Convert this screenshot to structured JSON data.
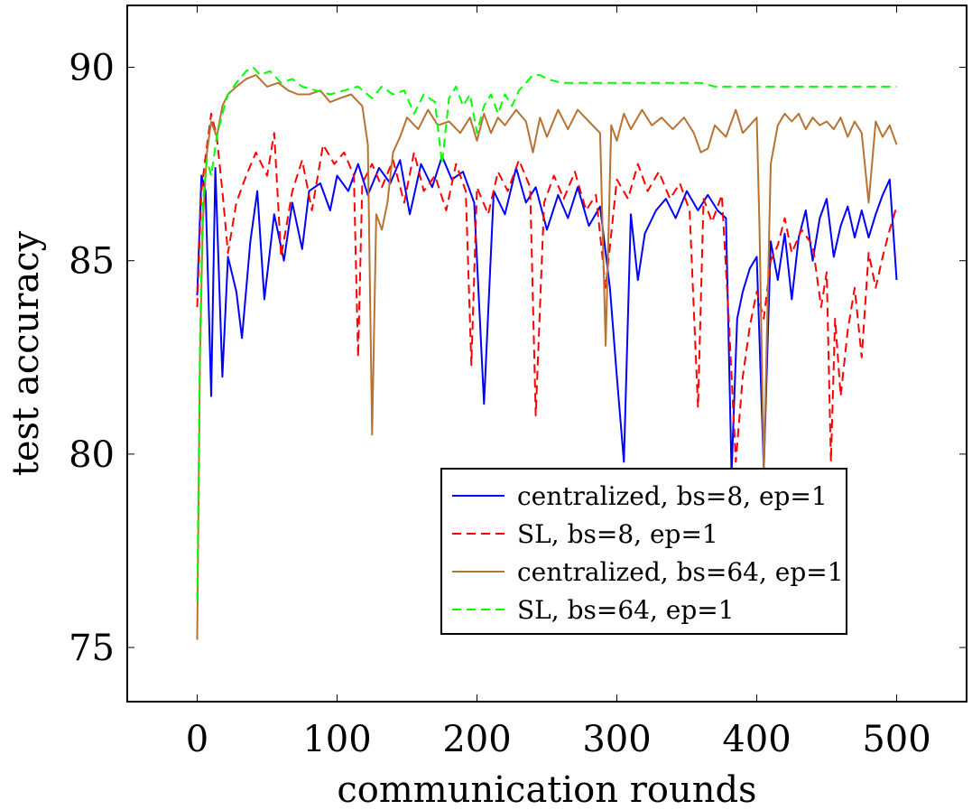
{
  "chart_data": {
    "type": "line",
    "title": "",
    "xlabel": "communication rounds",
    "ylabel": "test accuracy",
    "xlim": [
      -50,
      550
    ],
    "ylim": [
      73.6,
      91.6
    ],
    "xticks": [
      0,
      100,
      200,
      300,
      400,
      500
    ],
    "yticks": [
      75,
      80,
      85,
      90
    ],
    "grid": false,
    "legend_position": "lower-right",
    "series": [
      {
        "name": "centralized, bs=8,  ep=1",
        "color": "#0000ff",
        "dash": "solid",
        "x": [
          0,
          3,
          6,
          10,
          13,
          18,
          22,
          28,
          32,
          38,
          43,
          48,
          55,
          62,
          68,
          75,
          80,
          88,
          95,
          100,
          108,
          115,
          122,
          130,
          138,
          145,
          152,
          160,
          168,
          175,
          182,
          190,
          198,
          205,
          212,
          220,
          228,
          235,
          242,
          250,
          258,
          265,
          272,
          280,
          288,
          295,
          300,
          305,
          310,
          315,
          320,
          328,
          335,
          342,
          350,
          358,
          365,
          372,
          378,
          382,
          386,
          390,
          395,
          400,
          405,
          410,
          415,
          420,
          425,
          430,
          435,
          440,
          445,
          450,
          455,
          460,
          465,
          470,
          475,
          480,
          485,
          490,
          495,
          500
        ],
        "values": [
          84.1,
          87.2,
          86.8,
          81.5,
          87.4,
          82.0,
          85.1,
          84.2,
          83.0,
          85.5,
          86.8,
          84.0,
          86.2,
          85.0,
          86.5,
          85.3,
          86.8,
          87.0,
          86.3,
          87.2,
          86.8,
          87.5,
          86.7,
          87.4,
          87.0,
          87.6,
          86.2,
          87.5,
          86.9,
          87.7,
          87.1,
          87.3,
          86.5,
          81.3,
          86.8,
          86.2,
          87.4,
          86.5,
          86.9,
          85.8,
          86.7,
          86.1,
          86.9,
          85.9,
          86.4,
          84.3,
          82.0,
          79.8,
          86.2,
          84.5,
          85.7,
          86.3,
          86.6,
          86.1,
          86.8,
          86.3,
          86.7,
          86.3,
          86.1,
          79.5,
          83.5,
          84.2,
          84.8,
          85.1,
          79.6,
          85.5,
          84.5,
          85.7,
          84.0,
          85.6,
          86.3,
          85.0,
          86.1,
          86.6,
          85.1,
          85.9,
          86.4,
          85.6,
          86.3,
          85.6,
          86.2,
          86.7,
          87.1,
          84.5
        ]
      },
      {
        "name": "SL, bs=8,  ep=1",
        "color": "#ff0000",
        "dash": "dashed",
        "x": [
          0,
          3,
          6,
          10,
          14,
          18,
          22,
          28,
          35,
          42,
          50,
          55,
          60,
          68,
          75,
          82,
          90,
          98,
          105,
          112,
          115,
          118,
          125,
          132,
          140,
          148,
          155,
          162,
          170,
          178,
          185,
          192,
          196,
          200,
          208,
          215,
          222,
          230,
          238,
          242,
          248,
          255,
          262,
          270,
          278,
          285,
          292,
          300,
          308,
          315,
          322,
          330,
          338,
          345,
          352,
          358,
          362,
          368,
          375,
          380,
          385,
          390,
          395,
          400,
          405,
          410,
          415,
          420,
          425,
          432,
          440,
          446,
          450,
          453,
          456,
          460,
          465,
          470,
          475,
          480,
          485,
          490,
          495,
          500
        ],
        "values": [
          83.8,
          86.8,
          87.7,
          88.8,
          88.2,
          86.8,
          85.2,
          86.5,
          87.2,
          87.8,
          87.2,
          88.3,
          85.1,
          86.8,
          87.6,
          86.3,
          88.0,
          87.5,
          87.8,
          87.2,
          82.5,
          87.0,
          87.5,
          86.9,
          87.6,
          86.5,
          87.8,
          86.8,
          87.2,
          86.3,
          87.5,
          86.8,
          82.3,
          86.9,
          86.2,
          87.3,
          86.8,
          87.6,
          86.9,
          81.0,
          86.5,
          87.2,
          86.6,
          87.3,
          86.3,
          86.7,
          84.3,
          87.1,
          86.6,
          87.5,
          86.8,
          87.3,
          86.6,
          87.0,
          86.3,
          81.2,
          86.6,
          86.0,
          86.7,
          83.5,
          79.8,
          82.0,
          83.3,
          84.2,
          83.5,
          85.0,
          85.4,
          86.1,
          85.2,
          85.8,
          85.4,
          83.8,
          84.7,
          79.8,
          83.5,
          81.5,
          83.2,
          84.3,
          82.5,
          85.2,
          84.3,
          85.1,
          85.8,
          86.4
        ]
      },
      {
        "name": "centralized, bs=64,  ep=1",
        "color": "#b87333",
        "dash": "solid",
        "x": [
          0,
          2,
          4,
          7,
          10,
          14,
          18,
          22,
          28,
          35,
          42,
          50,
          58,
          65,
          72,
          80,
          88,
          95,
          102,
          110,
          118,
          122,
          125,
          128,
          132,
          136,
          140,
          145,
          150,
          158,
          165,
          172,
          180,
          188,
          195,
          200,
          205,
          210,
          215,
          220,
          228,
          235,
          240,
          245,
          250,
          258,
          265,
          272,
          280,
          288,
          292,
          296,
          300,
          305,
          310,
          318,
          325,
          332,
          340,
          348,
          355,
          360,
          365,
          370,
          378,
          385,
          390,
          395,
          400,
          402,
          405,
          410,
          415,
          420,
          425,
          430,
          435,
          440,
          445,
          450,
          455,
          460,
          465,
          470,
          475,
          480,
          485,
          490,
          495,
          500
        ],
        "values": [
          75.2,
          82.5,
          86.0,
          87.8,
          88.6,
          88.2,
          89.0,
          89.3,
          89.5,
          89.7,
          89.8,
          89.5,
          89.6,
          89.4,
          89.3,
          89.3,
          89.4,
          89.1,
          89.2,
          89.3,
          89.0,
          88.0,
          80.5,
          86.2,
          85.8,
          86.5,
          87.8,
          88.2,
          88.7,
          88.4,
          88.9,
          88.5,
          88.6,
          88.3,
          88.7,
          88.1,
          88.8,
          88.3,
          88.7,
          88.5,
          88.9,
          88.6,
          87.8,
          88.7,
          88.2,
          88.9,
          88.4,
          88.9,
          88.6,
          88.3,
          82.8,
          88.5,
          88.1,
          88.8,
          88.4,
          88.9,
          88.5,
          88.7,
          88.4,
          88.7,
          88.3,
          87.8,
          87.9,
          88.5,
          88.2,
          88.9,
          88.3,
          88.5,
          88.7,
          85.8,
          79.5,
          87.5,
          88.5,
          88.8,
          88.6,
          88.8,
          88.4,
          88.7,
          88.5,
          88.6,
          88.4,
          88.7,
          88.2,
          88.6,
          88.3,
          86.5,
          88.6,
          88.2,
          88.5,
          88.0
        ]
      },
      {
        "name": "SL, bs=64,  ep=1",
        "color": "#00ff00",
        "dash": "dashed",
        "x": [
          0,
          2,
          4,
          7,
          10,
          14,
          18,
          22,
          28,
          35,
          40,
          45,
          52,
          60,
          68,
          75,
          85,
          95,
          105,
          115,
          125,
          132,
          140,
          148,
          155,
          162,
          170,
          175,
          180,
          185,
          190,
          195,
          200,
          205,
          210,
          215,
          220,
          225,
          230,
          235,
          240,
          245,
          250,
          260,
          270,
          280,
          290,
          300,
          310,
          320,
          330,
          340,
          350,
          360,
          370,
          380,
          390,
          400,
          410,
          420,
          430,
          440,
          450,
          460,
          470,
          480,
          490,
          500
        ],
        "values": [
          76.2,
          83.0,
          86.5,
          87.6,
          87.2,
          88.2,
          88.8,
          89.3,
          89.6,
          89.9,
          90.0,
          89.8,
          89.9,
          89.6,
          89.7,
          89.5,
          89.4,
          89.3,
          89.4,
          89.5,
          89.2,
          89.5,
          89.3,
          89.4,
          88.8,
          89.3,
          89.1,
          87.5,
          89.2,
          89.5,
          89.0,
          89.3,
          88.3,
          89.0,
          89.3,
          88.8,
          89.3,
          89.0,
          89.4,
          89.6,
          89.8,
          89.8,
          89.7,
          89.6,
          89.6,
          89.6,
          89.6,
          89.6,
          89.6,
          89.6,
          89.6,
          89.6,
          89.6,
          89.6,
          89.5,
          89.5,
          89.5,
          89.5,
          89.5,
          89.5,
          89.5,
          89.5,
          89.5,
          89.5,
          89.5,
          89.5,
          89.5,
          89.5
        ]
      }
    ]
  }
}
